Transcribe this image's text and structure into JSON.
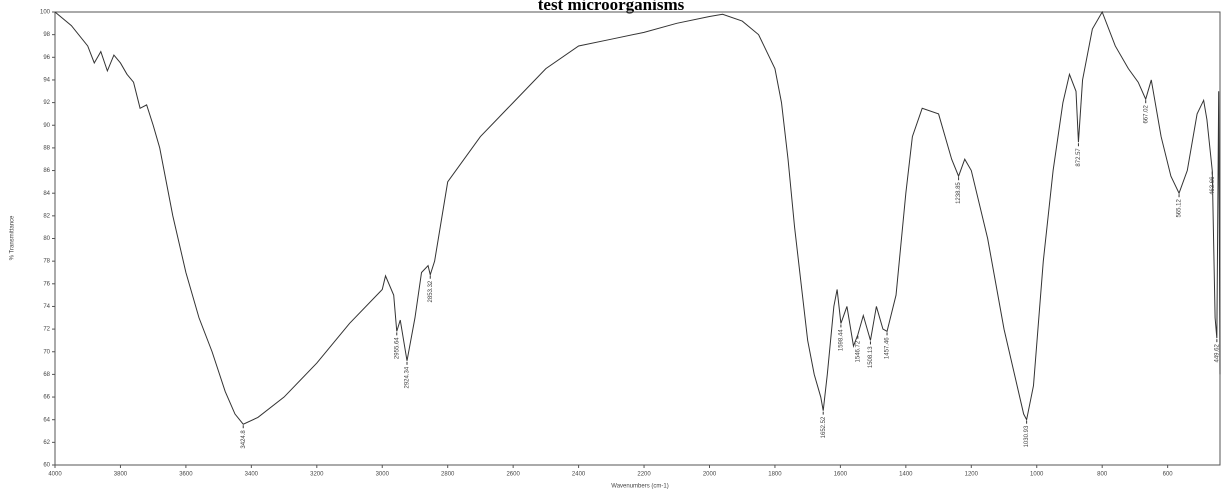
{
  "chart_data": {
    "type": "line",
    "title": "test microorganisms",
    "x_label": "Wavenumbers (cm-1)",
    "y_label": "% Transmittance",
    "color": "#333333",
    "reverse_x": true,
    "xlim": [
      4000,
      440
    ],
    "ylim": [
      60,
      100
    ],
    "xticks": [
      4000,
      3800,
      3600,
      3400,
      3200,
      3000,
      2800,
      2600,
      2400,
      2200,
      2000,
      1800,
      1600,
      1400,
      1200,
      1000,
      800,
      600
    ],
    "yticks": [
      60,
      62,
      64,
      66,
      68,
      70,
      72,
      74,
      76,
      78,
      80,
      82,
      84,
      86,
      88,
      90,
      92,
      94,
      96,
      98,
      100
    ],
    "x": [
      4000,
      3950,
      3900,
      3880,
      3860,
      3840,
      3820,
      3800,
      3780,
      3760,
      3740,
      3720,
      3700,
      3680,
      3660,
      3640,
      3600,
      3560,
      3520,
      3480,
      3450,
      3424.8,
      3380,
      3300,
      3200,
      3100,
      3000,
      2990,
      2965,
      2955.64,
      2945,
      2924.34,
      2900,
      2880,
      2860,
      2853.32,
      2840,
      2800,
      2700,
      2600,
      2500,
      2400,
      2300,
      2200,
      2100,
      2000,
      1960,
      1900,
      1850,
      1800,
      1780,
      1760,
      1740,
      1720,
      1700,
      1680,
      1660,
      1652.52,
      1640,
      1620,
      1610,
      1598.44,
      1580,
      1560,
      1546.72,
      1530,
      1508.13,
      1490,
      1470,
      1457.46,
      1430,
      1400,
      1380,
      1350,
      1300,
      1260,
      1238.85,
      1220,
      1200,
      1150,
      1100,
      1060,
      1040,
      1030.93,
      1010,
      980,
      950,
      920,
      900,
      880,
      872.57,
      860,
      830,
      800,
      760,
      720,
      690,
      667.02,
      650,
      620,
      590,
      565.12,
      540,
      510,
      490,
      480,
      463.66,
      455,
      449.62,
      444,
      440
    ],
    "y": [
      100,
      98.8,
      97,
      95.5,
      96.5,
      94.8,
      96.2,
      95.5,
      94.5,
      93.8,
      91.5,
      91.8,
      90,
      88,
      85,
      82,
      77,
      73,
      70,
      66.5,
      64.5,
      63.6,
      64.2,
      66,
      69,
      72.5,
      75.5,
      76.7,
      75,
      71.8,
      72.8,
      69.2,
      73,
      77,
      77.6,
      76.8,
      78,
      85,
      89,
      92,
      95,
      97,
      97.6,
      98.2,
      99,
      99.6,
      99.8,
      99.2,
      98,
      95,
      92,
      87,
      81,
      76,
      71,
      68,
      66,
      64.8,
      68,
      74,
      75.5,
      72.5,
      74,
      70.5,
      71.5,
      73.2,
      71,
      74,
      72,
      71.8,
      75,
      84,
      89,
      91.5,
      91,
      87,
      85.5,
      87,
      86,
      80,
      72,
      67,
      64.5,
      64,
      67,
      78,
      86,
      92,
      94.5,
      93,
      88.5,
      94,
      98.5,
      100,
      97,
      95,
      93.8,
      92.3,
      94,
      89,
      85.5,
      84,
      86,
      91,
      92.2,
      90.5,
      86,
      73,
      71.2,
      93,
      68
    ],
    "annotations": [
      {
        "label": "3424.8",
        "x": 3424.8,
        "y": 63.6
      },
      {
        "label": "2955.64",
        "x": 2955.64,
        "y": 71.8
      },
      {
        "label": "2924.34",
        "x": 2924.34,
        "y": 69.2
      },
      {
        "label": "2853.32",
        "x": 2853.32,
        "y": 76.8
      },
      {
        "label": "1652.52",
        "x": 1652.52,
        "y": 64.8
      },
      {
        "label": "1598.44",
        "x": 1598.44,
        "y": 72.5
      },
      {
        "label": "1546.72",
        "x": 1546.72,
        "y": 71.5
      },
      {
        "label": "1508.13",
        "x": 1508.13,
        "y": 71
      },
      {
        "label": "1457.46",
        "x": 1457.46,
        "y": 71.8
      },
      {
        "label": "1238.85",
        "x": 1238.85,
        "y": 85.5
      },
      {
        "label": "1030.93",
        "x": 1030.93,
        "y": 64
      },
      {
        "label": "872.57",
        "x": 872.57,
        "y": 88.5
      },
      {
        "label": "667.02",
        "x": 667.02,
        "y": 92.3
      },
      {
        "label": "565.12",
        "x": 565.12,
        "y": 84
      },
      {
        "label": "463.66",
        "x": 463.66,
        "y": 86
      },
      {
        "label": "449.62",
        "x": 449.62,
        "y": 71.2
      }
    ]
  }
}
